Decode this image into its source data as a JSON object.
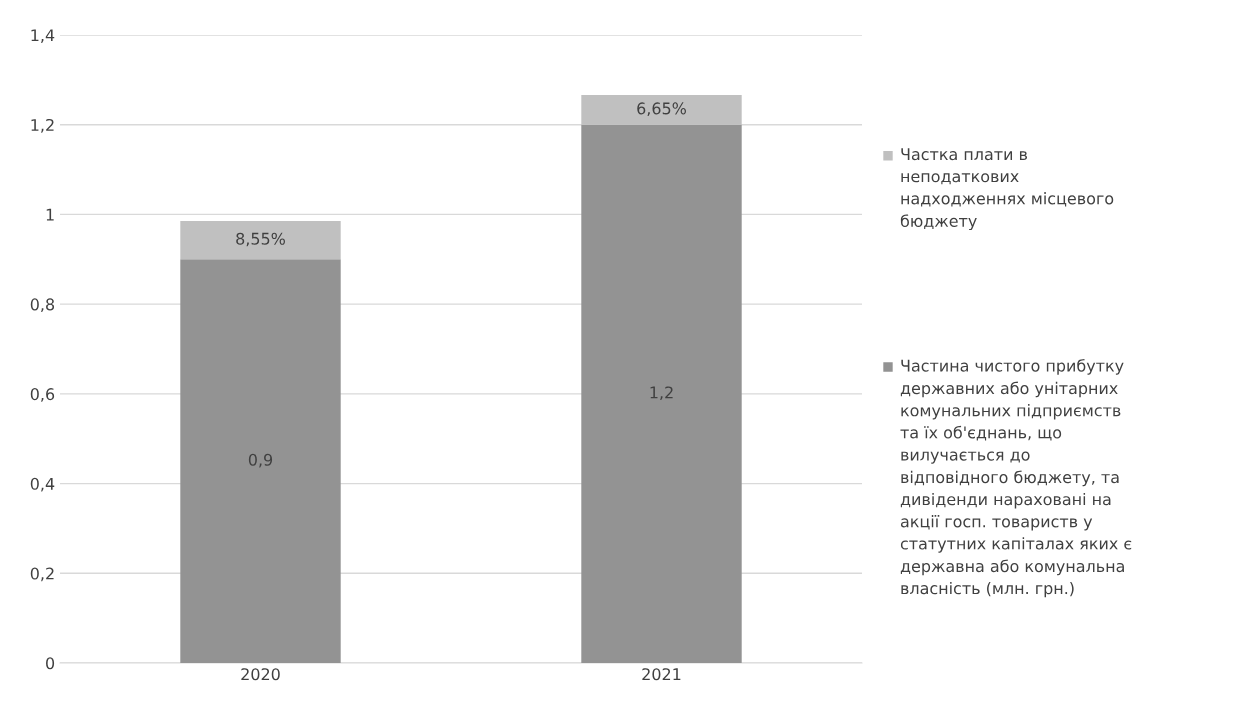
{
  "chart_data": {
    "type": "bar",
    "stacked": true,
    "categories": [
      "2020",
      "2021"
    ],
    "series": [
      {
        "name": "Частина чистого прибутку державних або унітарних комунальних підприємств та їх об'єднань, що вилучається до відповідного бюджету, та дивіденди нараховані на акції госп. товариств у статутних капіталах яких є державна або комунальна власність (млн. грн.)",
        "color": "#939393",
        "values": [
          0.9,
          1.2
        ],
        "value_labels": [
          "0,9",
          "1,2"
        ]
      },
      {
        "name": "Частка плати в неподаткових надходженнях місцевого бюджету",
        "color": "#c0c0c0",
        "values": [
          0.0855,
          0.0665
        ],
        "value_labels": [
          "8,55%",
          "6,65%"
        ]
      }
    ],
    "ylim": [
      0,
      1.4
    ],
    "yticks": [
      0,
      {
        "value": 0.2,
        "label": "0,2"
      },
      {
        "value": 0.4,
        "label": "0,4"
      },
      {
        "value": 0.6,
        "label": "0,6"
      },
      {
        "value": 0.8,
        "label": "0,8"
      },
      1,
      {
        "value": 1.2,
        "label": "1,2"
      },
      {
        "value": 1.4,
        "label": "1,4"
      }
    ],
    "grid": "y",
    "legend": "right"
  }
}
